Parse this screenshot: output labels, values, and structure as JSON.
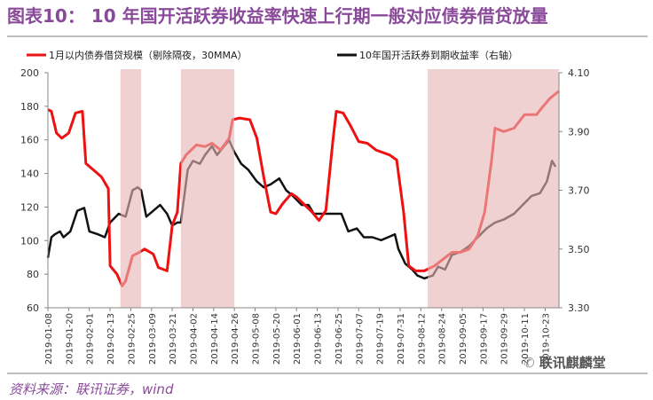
{
  "title": "图表10：  10 年国开活跃券收益率快速上行期一般对应债券借贷放量",
  "source": "资料来源：联讯证券，wind",
  "watermark": "联讯麒麟堂",
  "colors": {
    "series1": "#ee1111",
    "series2": "#111111",
    "shade": "#e6b5b5",
    "title": "#8a4a9a"
  },
  "chart_data": {
    "type": "line",
    "x_unit": "days since 2019-01-08",
    "xlim": [
      0,
      296
    ],
    "x_tick_labels": [
      "2019-01-08",
      "2019-01-20",
      "2019-02-01",
      "2019-02-13",
      "2019-02-25",
      "2019-03-09",
      "2019-03-21",
      "2019-04-02",
      "2019-04-14",
      "2019-04-26",
      "2019-05-08",
      "2019-05-20",
      "2019-06-01",
      "2019-06-13",
      "2019-06-25",
      "2019-07-07",
      "2019-07-19",
      "2019-07-31",
      "2019-08-12",
      "2019-08-24",
      "2019-09-05",
      "2019-09-17",
      "2019-09-29",
      "2019-10-11",
      "2019-10-23"
    ],
    "x_tick_step_days": 12,
    "y_left": {
      "lim": [
        60,
        200
      ],
      "ticks": [
        "60",
        "80",
        "100",
        "120",
        "140",
        "160",
        "180",
        "200"
      ]
    },
    "y_right": {
      "lim": [
        3.3,
        4.1
      ],
      "ticks": [
        "3.30",
        "3.50",
        "3.70",
        "3.90",
        "4.10"
      ]
    },
    "shaded_ranges": [
      [
        42,
        54
      ],
      [
        77,
        108
      ],
      [
        220,
        296
      ]
    ],
    "legend_position": "top",
    "series": [
      {
        "name": "1月以内债券借贷规模（剔除隔夜，30MMA）",
        "axis": "left",
        "points": [
          [
            0,
            178
          ],
          [
            2,
            177
          ],
          [
            5,
            164
          ],
          [
            8,
            161
          ],
          [
            12,
            164
          ],
          [
            16,
            176
          ],
          [
            20,
            177
          ],
          [
            22,
            146
          ],
          [
            31,
            138
          ],
          [
            35,
            131
          ],
          [
            36,
            85
          ],
          [
            40,
            80
          ],
          [
            43,
            73
          ],
          [
            45,
            76
          ],
          [
            49,
            91
          ],
          [
            53,
            93
          ],
          [
            56,
            95
          ],
          [
            61,
            92
          ],
          [
            64,
            84
          ],
          [
            69,
            82
          ],
          [
            72,
            109
          ],
          [
            75,
            117
          ],
          [
            77,
            146
          ],
          [
            80,
            151
          ],
          [
            83,
            154
          ],
          [
            86,
            157
          ],
          [
            91,
            156
          ],
          [
            95,
            158
          ],
          [
            100,
            154
          ],
          [
            105,
            161
          ],
          [
            107,
            172
          ],
          [
            111,
            173
          ],
          [
            117,
            172
          ],
          [
            121,
            161
          ],
          [
            125,
            138
          ],
          [
            129,
            117
          ],
          [
            132,
            116
          ],
          [
            136,
            122
          ],
          [
            141,
            128
          ],
          [
            144,
            126
          ],
          [
            149,
            121
          ],
          [
            153,
            117
          ],
          [
            157,
            112
          ],
          [
            161,
            118
          ],
          [
            165,
            159
          ],
          [
            167,
            177
          ],
          [
            171,
            176
          ],
          [
            175,
            169
          ],
          [
            180,
            159
          ],
          [
            185,
            158
          ],
          [
            190,
            154
          ],
          [
            198,
            151
          ],
          [
            202,
            148
          ],
          [
            206,
            117
          ],
          [
            209,
            85
          ],
          [
            213,
            82
          ],
          [
            218,
            82
          ],
          [
            224,
            85
          ],
          [
            229,
            89
          ],
          [
            234,
            93
          ],
          [
            239,
            93
          ],
          [
            244,
            95
          ],
          [
            249,
            103
          ],
          [
            253,
            117
          ],
          [
            257,
            148
          ],
          [
            259,
            167
          ],
          [
            264,
            165
          ],
          [
            270,
            167
          ],
          [
            276,
            175
          ],
          [
            283,
            175
          ],
          [
            286,
            179
          ],
          [
            291,
            185
          ],
          [
            296,
            189
          ]
        ]
      },
      {
        "name": "10年国开活跃券到期收益率（右轴）",
        "axis": "right",
        "points": [
          [
            0,
            3.47
          ],
          [
            2,
            3.54
          ],
          [
            4,
            3.55
          ],
          [
            7,
            3.56
          ],
          [
            9,
            3.54
          ],
          [
            13,
            3.56
          ],
          [
            17,
            3.63
          ],
          [
            21,
            3.64
          ],
          [
            24,
            3.56
          ],
          [
            29,
            3.55
          ],
          [
            33,
            3.54
          ],
          [
            36,
            3.59
          ],
          [
            41,
            3.62
          ],
          [
            45,
            3.61
          ],
          [
            49,
            3.7
          ],
          [
            52,
            3.71
          ],
          [
            54,
            3.7
          ],
          [
            57,
            3.61
          ],
          [
            61,
            3.63
          ],
          [
            65,
            3.65
          ],
          [
            69,
            3.62
          ],
          [
            72,
            3.58
          ],
          [
            75,
            3.59
          ],
          [
            77,
            3.59
          ],
          [
            81,
            3.77
          ],
          [
            84,
            3.8
          ],
          [
            88,
            3.79
          ],
          [
            91,
            3.82
          ],
          [
            95,
            3.85
          ],
          [
            98,
            3.82
          ],
          [
            102,
            3.85
          ],
          [
            105,
            3.87
          ],
          [
            108,
            3.83
          ],
          [
            112,
            3.79
          ],
          [
            116,
            3.77
          ],
          [
            121,
            3.73
          ],
          [
            125,
            3.71
          ],
          [
            129,
            3.72
          ],
          [
            134,
            3.74
          ],
          [
            138,
            3.7
          ],
          [
            142,
            3.68
          ],
          [
            147,
            3.65
          ],
          [
            151,
            3.65
          ],
          [
            154,
            3.62
          ],
          [
            159,
            3.62
          ],
          [
            165,
            3.62
          ],
          [
            170,
            3.62
          ],
          [
            174,
            3.56
          ],
          [
            179,
            3.57
          ],
          [
            183,
            3.54
          ],
          [
            188,
            3.54
          ],
          [
            193,
            3.53
          ],
          [
            197,
            3.54
          ],
          [
            201,
            3.55
          ],
          [
            203,
            3.5
          ],
          [
            207,
            3.45
          ],
          [
            211,
            3.43
          ],
          [
            214,
            3.41
          ],
          [
            218,
            3.4
          ],
          [
            223,
            3.41
          ],
          [
            226,
            3.44
          ],
          [
            230,
            3.43
          ],
          [
            234,
            3.48
          ],
          [
            239,
            3.49
          ],
          [
            244,
            3.51
          ],
          [
            249,
            3.54
          ],
          [
            254,
            3.57
          ],
          [
            259,
            3.59
          ],
          [
            264,
            3.6
          ],
          [
            270,
            3.62
          ],
          [
            275,
            3.65
          ],
          [
            280,
            3.68
          ],
          [
            285,
            3.69
          ],
          [
            289,
            3.73
          ],
          [
            292,
            3.8
          ],
          [
            294,
            3.78
          ]
        ]
      }
    ]
  }
}
